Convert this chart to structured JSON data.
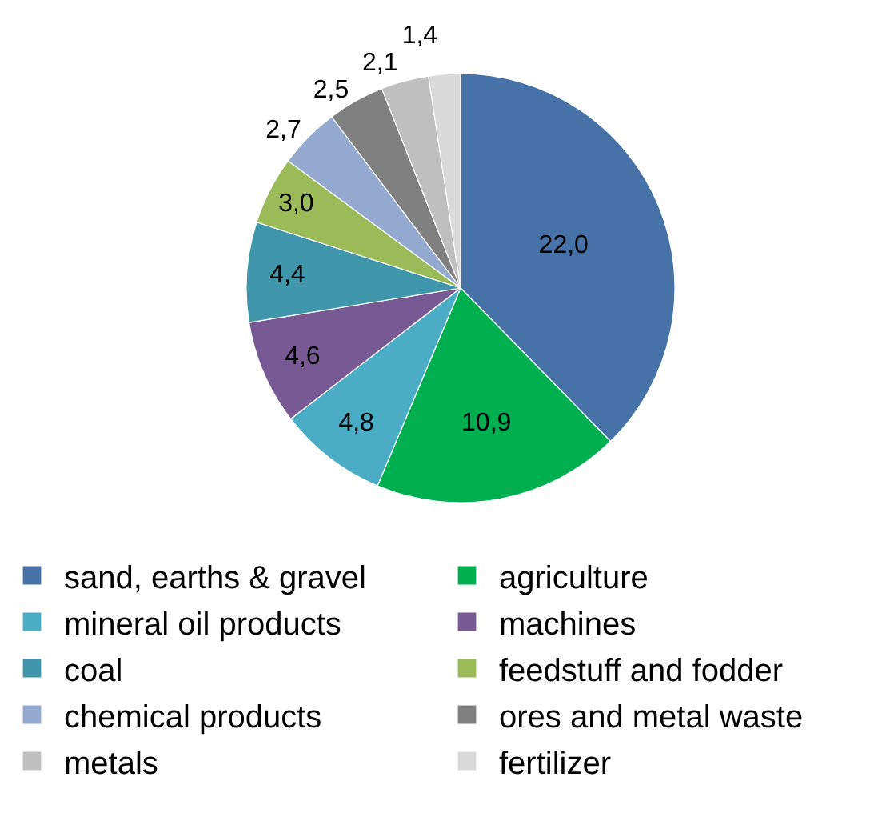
{
  "chart_data": {
    "type": "pie",
    "categories": [
      "sand, earths & gravel",
      "agriculture",
      "mineral oil products",
      "machines",
      "coal",
      "feedstuff and fodder",
      "chemical products",
      "ores and metal waste",
      "metals",
      "fertilizer"
    ],
    "values": [
      22.0,
      10.9,
      4.8,
      4.6,
      4.4,
      3.0,
      2.7,
      2.5,
      2.1,
      1.4
    ],
    "value_labels": [
      "22,0",
      "10,9",
      "4,8",
      "4,6",
      "4,4",
      "3,0",
      "2,7",
      "2,5",
      "2,1",
      "1,4"
    ],
    "colors": [
      "#4672a8",
      "#00b050",
      "#4bacc6",
      "#775a93",
      "#4097ac",
      "#9bbb59",
      "#93a9cf",
      "#808080",
      "#bfbfbf",
      "#d9d9d9"
    ],
    "legend": "bottom"
  }
}
